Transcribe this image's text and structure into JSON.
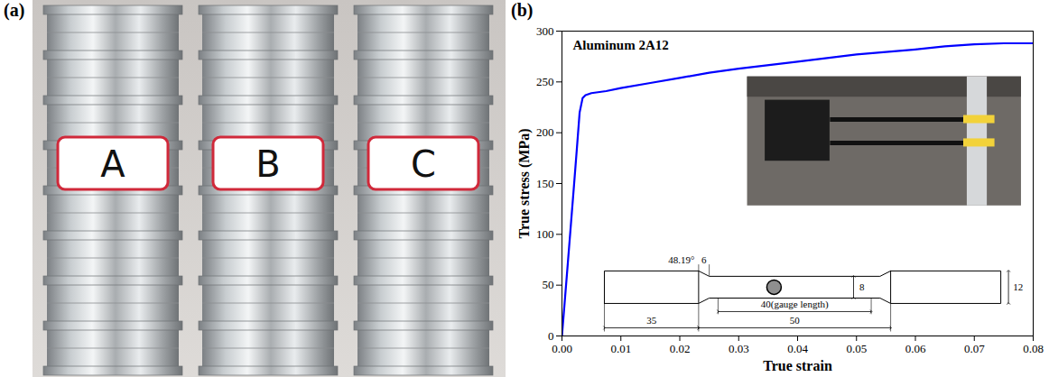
{
  "photo_panel": {
    "panel_label": "(a)",
    "sample_labels": [
      "A",
      "B",
      "C"
    ]
  },
  "chart_data": {
    "type": "line",
    "panel_label": "(b)",
    "title": "Aluminum 2A12",
    "x_label": "True strain",
    "y_label": "True stress (MPa)",
    "x": [
      0,
      0.001,
      0.002,
      0.0025,
      0.003,
      0.0035,
      0.004,
      0.005,
      0.0075,
      0.01,
      0.015,
      0.02,
      0.025,
      0.03,
      0.04,
      0.05,
      0.06,
      0.065,
      0.07,
      0.075,
      0.08
    ],
    "values": [
      0,
      72,
      145,
      182,
      220,
      234,
      237,
      239,
      241,
      244,
      249,
      254,
      259,
      263,
      270,
      277,
      282,
      285,
      287,
      288,
      288
    ],
    "color": "#0000ff",
    "xlim": [
      0,
      0.08
    ],
    "xticks": [
      {
        "value": 0,
        "label": "0.00"
      },
      {
        "value": 0.01,
        "label": "0.01"
      },
      {
        "value": 0.02,
        "label": "0.02"
      },
      {
        "value": 0.03,
        "label": "0.03"
      },
      {
        "value": 0.04,
        "label": "0.04"
      },
      {
        "value": 0.05,
        "label": "0.05"
      },
      {
        "value": 0.06,
        "label": "0.06"
      },
      {
        "value": 0.07,
        "label": "0.07"
      },
      {
        "value": 0.08,
        "label": "0.08"
      }
    ],
    "ylim": [
      0,
      300
    ],
    "yticks": [
      0,
      50,
      100,
      150,
      200,
      250,
      300
    ],
    "annotations": [
      "48.19°",
      "6",
      "8",
      "35",
      "50",
      "40(gauge length)",
      "12"
    ]
  }
}
